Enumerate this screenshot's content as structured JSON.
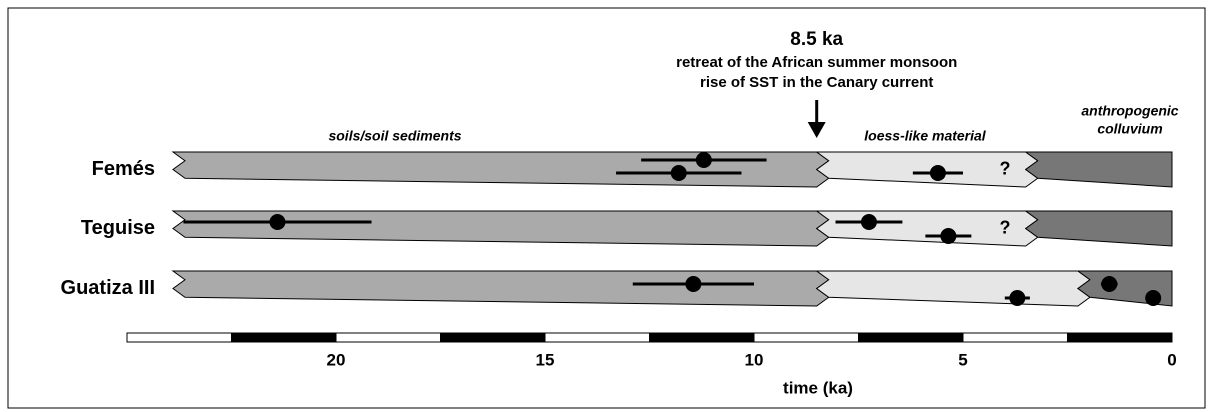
{
  "chart_data": {
    "type": "timeline",
    "annotation": {
      "value": 8.5,
      "label": "8.5 ka",
      "lines": [
        "retreat of the African summer monsoon",
        "rise of SST in the Canary current"
      ]
    },
    "zones": [
      {
        "name": [
          "soils/soil sediments"
        ],
        "color": "#aaaaaa"
      },
      {
        "name": [
          "loess-like material"
        ],
        "color": "#e6e6e6"
      },
      {
        "name": [
          "anthropogenic",
          "colluvium"
        ],
        "color": "#777777"
      }
    ],
    "series": [
      {
        "name": "Femés",
        "boundaries": [
          23.9,
          8.5,
          3.5,
          0
        ],
        "note": "?",
        "points": [
          {
            "value": 11.2,
            "error": 1.5
          },
          {
            "value": 11.8,
            "error": 1.5
          },
          {
            "value": 5.6,
            "error": 0.6
          }
        ]
      },
      {
        "name": "Teguise",
        "boundaries": [
          23.9,
          8.5,
          3.5,
          0
        ],
        "note": "?",
        "points": [
          {
            "value": 21.4,
            "error": 2.25
          },
          {
            "value": 7.25,
            "error": 0.8
          },
          {
            "value": 5.35,
            "error": 0.55
          }
        ]
      },
      {
        "name": "Guatiza III",
        "boundaries": [
          23.9,
          8.5,
          2.25,
          0
        ],
        "points": [
          {
            "value": 11.45,
            "error": 1.45
          },
          {
            "value": 3.7,
            "error": 0.3
          },
          {
            "value": 1.5,
            "error": 0.2
          },
          {
            "value": 0.45,
            "error": 0
          }
        ]
      }
    ],
    "xlim": [
      25,
      0
    ],
    "xticks": [
      20,
      15,
      10,
      5,
      0
    ],
    "xlabel": "time (ka)"
  }
}
